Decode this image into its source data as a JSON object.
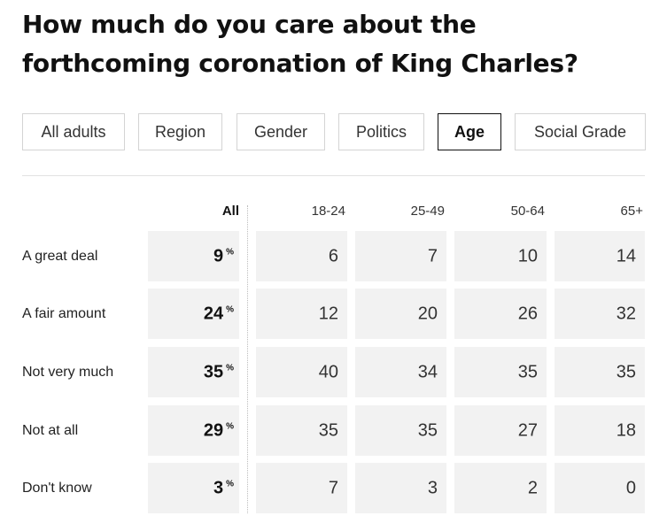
{
  "title": "How much do you care about the forthcoming coronation of King Charles?",
  "filters": [
    {
      "label": "All adults",
      "active": false
    },
    {
      "label": "Region",
      "active": false
    },
    {
      "label": "Gender",
      "active": false
    },
    {
      "label": "Politics",
      "active": false
    },
    {
      "label": "Age",
      "active": true
    },
    {
      "label": "Social Grade",
      "active": false
    }
  ],
  "percent_symbol": "%",
  "chart_data": {
    "type": "table",
    "title": "How much do you care about the forthcoming coronation of King Charles?",
    "unit": "%",
    "total_column": "All",
    "columns": [
      "18-24",
      "25-49",
      "50-64",
      "65+"
    ],
    "rows": [
      {
        "label": "A great deal",
        "all": 9,
        "values": [
          6,
          7,
          10,
          14
        ]
      },
      {
        "label": "A fair amount",
        "all": 24,
        "values": [
          12,
          20,
          26,
          32
        ]
      },
      {
        "label": "Not very much",
        "all": 35,
        "values": [
          40,
          34,
          35,
          35
        ]
      },
      {
        "label": "Not at all",
        "all": 29,
        "values": [
          35,
          35,
          27,
          18
        ]
      },
      {
        "label": "Don't know",
        "all": 3,
        "values": [
          7,
          3,
          2,
          0
        ]
      }
    ]
  },
  "colors": {
    "cell_background": "#f2f2f2",
    "text": "#111111",
    "active_border": "#111111",
    "inactive_border": "#d4d4d4"
  }
}
